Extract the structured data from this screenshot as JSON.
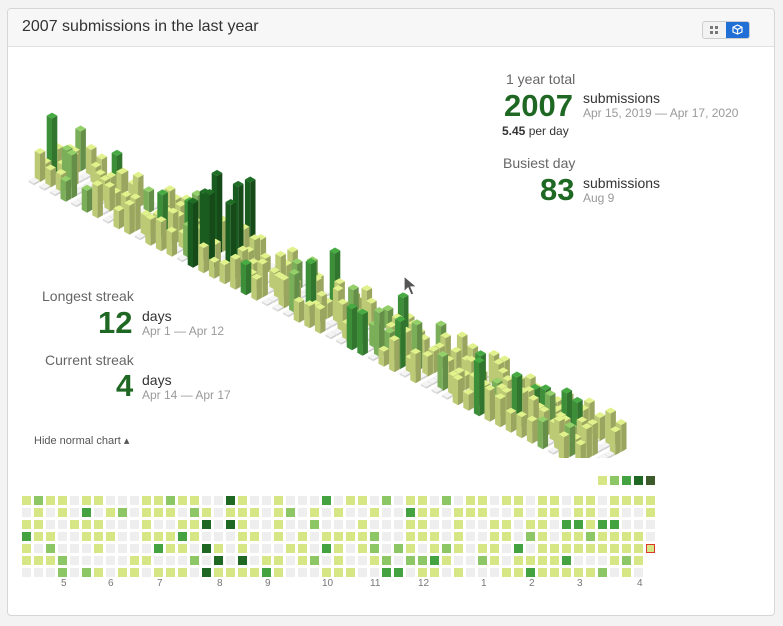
{
  "header": {
    "title": "2007 submissions in the last year",
    "toggle_grid_icon": "grid-icon",
    "toggle_cube_icon": "cube-icon"
  },
  "summary": {
    "total_label": "1 year total",
    "total_value": "2007",
    "total_unit": "submissions",
    "total_range": "Apr 15, 2019 — Apr 17, 2020",
    "per_day_value": "5.45",
    "per_day_label": "per day",
    "busiest_label": "Busiest day",
    "busiest_value": "83",
    "busiest_unit": "submissions",
    "busiest_date": "Aug 9"
  },
  "streaks": {
    "longest_label": "Longest streak",
    "longest_value": "12",
    "longest_unit": "days",
    "longest_range": "Apr 1 — Apr 12",
    "current_label": "Current streak",
    "current_value": "4",
    "current_unit": "days",
    "current_range": "Apr 14 — Apr 17"
  },
  "hide_link": "Hide normal chart ▴",
  "months": [
    "5",
    "6",
    "7",
    "8",
    "9",
    "10",
    "11",
    "12",
    "1",
    "2",
    "3",
    "4"
  ],
  "colors": {
    "empty": "#eeeeee",
    "level1": "#d6e685",
    "level2": "#8cc665",
    "level3": "#44a340",
    "level4": "#1e6823",
    "today_outline": "#e0352b"
  },
  "legend_levels": [
    "level1",
    "level2",
    "level3",
    "level4",
    "level4"
  ]
}
